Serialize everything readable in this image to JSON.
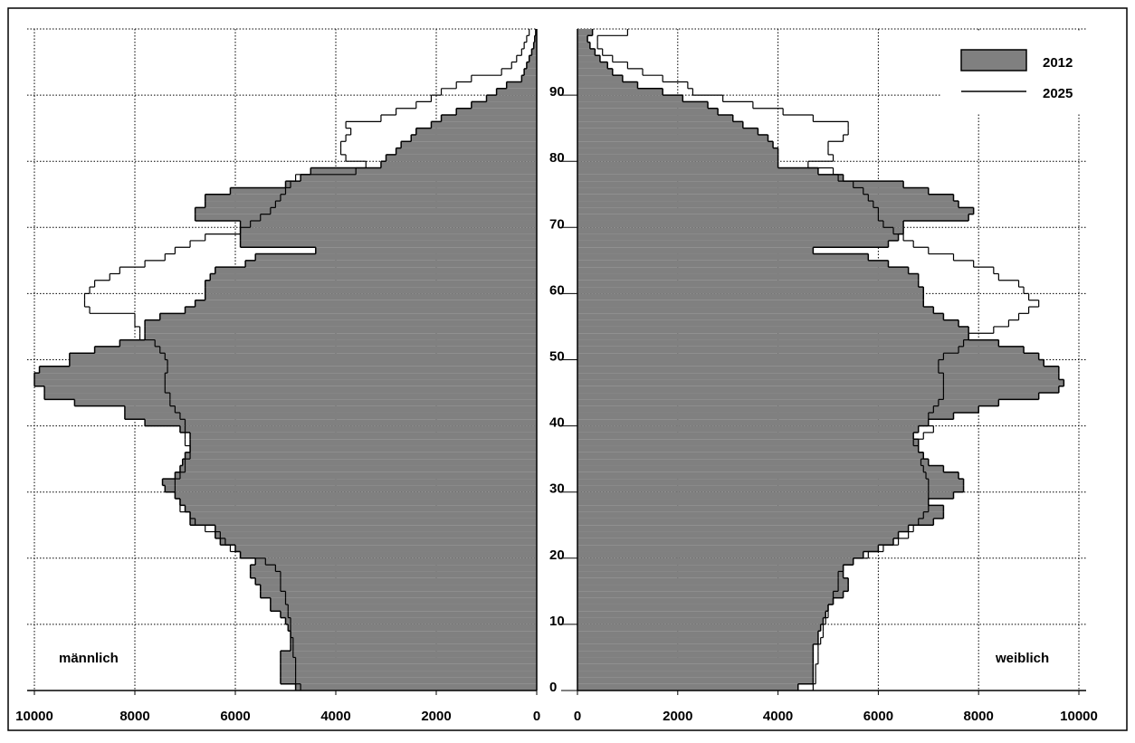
{
  "chart_data": [
    {
      "type": "pyramid",
      "label": "männlich",
      "y": [
        0,
        1,
        2,
        3,
        4,
        5,
        6,
        7,
        8,
        9,
        10,
        11,
        12,
        13,
        14,
        15,
        16,
        17,
        18,
        19,
        20,
        21,
        22,
        23,
        24,
        25,
        26,
        27,
        28,
        29,
        30,
        31,
        32,
        33,
        34,
        35,
        36,
        37,
        38,
        39,
        40,
        41,
        42,
        43,
        44,
        45,
        46,
        47,
        48,
        49,
        50,
        51,
        52,
        53,
        54,
        55,
        56,
        57,
        58,
        59,
        60,
        61,
        62,
        63,
        64,
        65,
        66,
        67,
        68,
        69,
        70,
        71,
        72,
        73,
        74,
        75,
        76,
        77,
        78,
        79,
        80,
        81,
        82,
        83,
        84,
        85,
        86,
        87,
        88,
        89,
        90,
        91,
        92,
        93,
        94,
        95,
        96,
        97,
        98,
        99
      ],
      "ylim": [
        0,
        100
      ],
      "yticks": [
        0,
        10,
        20,
        30,
        40,
        50,
        60,
        70,
        80,
        90
      ],
      "xlim": [
        10000,
        0
      ],
      "xticks": [
        10000,
        8000,
        6000,
        4000,
        2000,
        0
      ],
      "grid": true,
      "legend": "upper right",
      "series": [
        {
          "name": "2012",
          "color": "#808080",
          "values": [
            4800,
            5100,
            5100,
            5100,
            5100,
            5100,
            4900,
            4900,
            4900,
            4950,
            5000,
            5100,
            5300,
            5300,
            5500,
            5500,
            5600,
            5700,
            5700,
            5600,
            5900,
            6000,
            6300,
            6400,
            6400,
            6900,
            6900,
            7000,
            7100,
            7200,
            7400,
            7450,
            7200,
            7100,
            7050,
            7000,
            6900,
            6900,
            6900,
            7100,
            7800,
            8200,
            8200,
            9200,
            9800,
            9800,
            10000,
            10000,
            9900,
            9300,
            9300,
            8800,
            8300,
            7800,
            7800,
            7800,
            7500,
            7000,
            6800,
            6600,
            6600,
            6600,
            6500,
            6400,
            5800,
            5600,
            4400,
            5900,
            5900,
            5900,
            5900,
            6800,
            6800,
            6600,
            6600,
            6100,
            5000,
            4700,
            4500,
            3100,
            3000,
            2800,
            2700,
            2500,
            2400,
            2100,
            1900,
            1600,
            1300,
            1000,
            800,
            600,
            300,
            250,
            200,
            150,
            100,
            60,
            40,
            20
          ]
        },
        {
          "name": "2025",
          "color": "#000000",
          "values": [
            4700,
            4800,
            4800,
            4800,
            4800,
            4850,
            4850,
            4850,
            4900,
            4900,
            4900,
            4950,
            4950,
            5000,
            5000,
            5100,
            5100,
            5100,
            5200,
            5400,
            5900,
            6100,
            6200,
            6300,
            6600,
            6800,
            6900,
            7100,
            7100,
            7200,
            7200,
            7200,
            7100,
            7000,
            7000,
            6900,
            6900,
            7000,
            7000,
            7000,
            7000,
            7100,
            7200,
            7300,
            7300,
            7400,
            7400,
            7400,
            7350,
            7350,
            7400,
            7500,
            7600,
            7900,
            7900,
            8000,
            8000,
            8900,
            9000,
            9000,
            8900,
            8800,
            8500,
            8300,
            7800,
            7400,
            7200,
            6900,
            6600,
            5900,
            5700,
            5500,
            5300,
            5200,
            5100,
            5000,
            4900,
            4800,
            3600,
            3400,
            3800,
            3900,
            3900,
            3800,
            3700,
            3800,
            3100,
            2800,
            2400,
            2100,
            1900,
            1600,
            1300,
            700,
            500,
            400,
            300,
            250,
            200,
            150
          ]
        }
      ]
    },
    {
      "type": "pyramid",
      "label": "weiblich",
      "y": [
        0,
        1,
        2,
        3,
        4,
        5,
        6,
        7,
        8,
        9,
        10,
        11,
        12,
        13,
        14,
        15,
        16,
        17,
        18,
        19,
        20,
        21,
        22,
        23,
        24,
        25,
        26,
        27,
        28,
        29,
        30,
        31,
        32,
        33,
        34,
        35,
        36,
        37,
        38,
        39,
        40,
        41,
        42,
        43,
        44,
        45,
        46,
        47,
        48,
        49,
        50,
        51,
        52,
        53,
        54,
        55,
        56,
        57,
        58,
        59,
        60,
        61,
        62,
        63,
        64,
        65,
        66,
        67,
        68,
        69,
        70,
        71,
        72,
        73,
        74,
        75,
        76,
        77,
        78,
        79,
        80,
        81,
        82,
        83,
        84,
        85,
        86,
        87,
        88,
        89,
        90,
        91,
        92,
        93,
        94,
        95,
        96,
        97,
        98,
        99
      ],
      "ylim": [
        0,
        100
      ],
      "xlim": [
        0,
        10000
      ],
      "xticks": [
        0,
        2000,
        4000,
        6000,
        8000,
        10000
      ],
      "grid": true,
      "series": [
        {
          "color": "#808080",
          "values": [
            4400,
            4700,
            4700,
            4700,
            4700,
            4700,
            4700,
            4800,
            4800,
            4850,
            4900,
            4950,
            5000,
            5100,
            5300,
            5400,
            5400,
            5300,
            5300,
            5500,
            5700,
            6000,
            6300,
            6400,
            6600,
            7100,
            7300,
            7300,
            7000,
            7500,
            7700,
            7700,
            7600,
            7300,
            7000,
            6900,
            6800,
            6800,
            6700,
            6800,
            7000,
            7500,
            8000,
            8400,
            9200,
            9600,
            9700,
            9600,
            9600,
            9300,
            9200,
            8900,
            8400,
            7800,
            7800,
            7600,
            7300,
            7100,
            6900,
            6900,
            6900,
            6800,
            6800,
            6600,
            6200,
            5800,
            4700,
            6200,
            6400,
            6500,
            6500,
            7800,
            7900,
            7600,
            7500,
            7000,
            6500,
            5300,
            4800,
            4000,
            4000,
            4000,
            3900,
            3800,
            3600,
            3300,
            3100,
            2800,
            2600,
            2100,
            1700,
            1200,
            900,
            700,
            600,
            450,
            350,
            250,
            200,
            300
          ]
        },
        {
          "color": "#000000",
          "values": [
            4700,
            4750,
            4750,
            4750,
            4800,
            4800,
            4800,
            4850,
            4900,
            4900,
            4950,
            5000,
            5000,
            5100,
            5100,
            5200,
            5200,
            5200,
            5300,
            5500,
            5800,
            6100,
            6400,
            6600,
            6700,
            6800,
            6900,
            7000,
            7000,
            7000,
            7000,
            7000,
            6950,
            6900,
            6850,
            6900,
            6800,
            6700,
            6900,
            7100,
            7000,
            7000,
            7100,
            7200,
            7300,
            7300,
            7300,
            7300,
            7200,
            7200,
            7300,
            7600,
            7700,
            7800,
            8300,
            8600,
            8800,
            9000,
            9200,
            9000,
            8900,
            8800,
            8400,
            8300,
            7900,
            7500,
            7000,
            6700,
            6500,
            6300,
            6100,
            6000,
            6000,
            5900,
            5800,
            5700,
            5500,
            5200,
            5100,
            4600,
            5100,
            5000,
            5000,
            5300,
            5400,
            5400,
            4700,
            4100,
            3500,
            2900,
            2300,
            2200,
            1700,
            1300,
            1000,
            700,
            500,
            400,
            400,
            1000
          ]
        }
      ]
    }
  ]
}
